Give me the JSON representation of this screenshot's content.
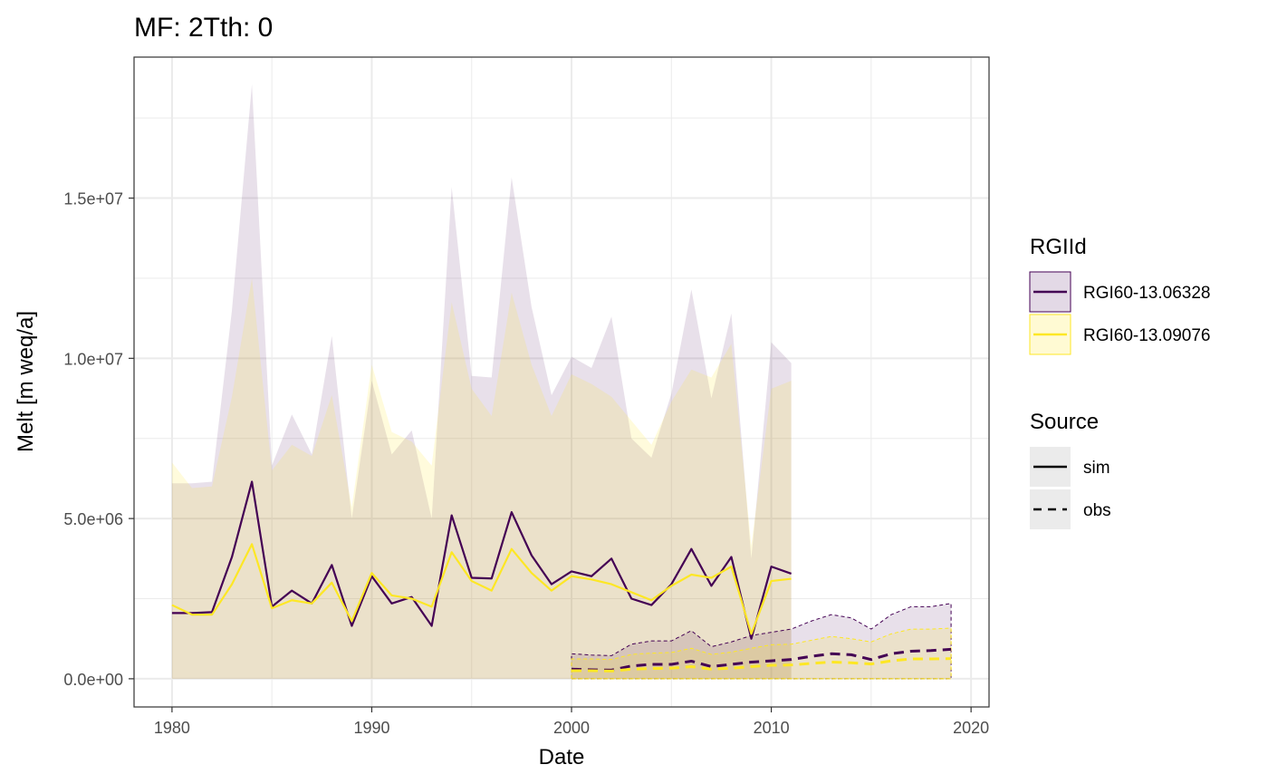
{
  "chart_data": {
    "type": "line",
    "title": "MF: 2Tth: 0",
    "xlabel": "Date",
    "ylabel": "Melt [m weq/a]",
    "xlim": [
      1978.1,
      2020.9
    ],
    "ylim": [
      -880000,
      19400000
    ],
    "x_ticks": [
      1980,
      1990,
      2000,
      2010,
      2020
    ],
    "x_tick_labels": [
      "1980",
      "1990",
      "2000",
      "2010",
      "2020"
    ],
    "y_ticks": [
      0,
      5000000,
      10000000,
      15000000
    ],
    "y_tick_labels": [
      "0.0e+00",
      "5.0e+06",
      "1.0e+07",
      "1.5e+07"
    ],
    "grid": true,
    "legend_position": "right",
    "legend": {
      "color_title": "RGIId",
      "color_entries": [
        {
          "label": "RGI60-13.06328",
          "color": "#440154"
        },
        {
          "label": "RGI60-13.09076",
          "color": "#FDE725"
        }
      ],
      "linetype_title": "Source",
      "linetype_entries": [
        {
          "label": "sim",
          "dash": "solid"
        },
        {
          "label": "obs",
          "dash": "dashed"
        }
      ]
    },
    "series": [
      {
        "glacier": "RGI60-13.06328",
        "source": "sim",
        "color": "#440154",
        "dash": "solid",
        "x": [
          1980,
          1981,
          1982,
          1983,
          1984,
          1985,
          1986,
          1987,
          1988,
          1989,
          1990,
          1991,
          1992,
          1993,
          1994,
          1995,
          1996,
          1997,
          1998,
          1999,
          2000,
          2001,
          2002,
          2003,
          2004,
          2005,
          2006,
          2007,
          2008,
          2009,
          2010,
          2011
        ],
        "y": [
          2050000,
          2050000,
          2080000,
          3800000,
          6150000,
          2250000,
          2750000,
          2350000,
          3550000,
          1650000,
          3200000,
          2350000,
          2550000,
          1650000,
          5100000,
          3150000,
          3130000,
          5200000,
          3850000,
          2950000,
          3350000,
          3200000,
          3750000,
          2500000,
          2300000,
          2950000,
          4050000,
          2900000,
          3800000,
          1250000,
          3500000,
          3280000
        ],
        "band_low": [
          6100000,
          6100000,
          6150000,
          11500000,
          18550000,
          6650000,
          8250000,
          7000000,
          10700000,
          5000000,
          9300000,
          7000000,
          7750000,
          5000000,
          15350000,
          9450000,
          9400000,
          15650000,
          11600000,
          8850000,
          10050000,
          9700000,
          11300000,
          7500000,
          6900000,
          8900000,
          12150000,
          8750000,
          11400000,
          3750000,
          10500000,
          9850000
        ],
        "band_high": [
          6100000,
          6100000,
          6150000,
          11500000,
          18550000,
          6650000,
          8250000,
          7000000,
          10700000,
          5000000,
          9300000,
          7000000,
          7750000,
          5000000,
          15350000,
          9450000,
          9400000,
          15650000,
          11600000,
          8850000,
          10050000,
          9700000,
          11300000,
          7500000,
          6900000,
          8900000,
          12150000,
          8750000,
          11400000,
          3750000,
          10500000,
          9850000
        ]
      },
      {
        "glacier": "RGI60-13.09076",
        "source": "sim",
        "color": "#FDE725",
        "dash": "solid",
        "x": [
          1980,
          1981,
          1982,
          1983,
          1984,
          1985,
          1986,
          1987,
          1988,
          1989,
          1990,
          1991,
          1992,
          1993,
          1994,
          1995,
          1996,
          1997,
          1998,
          1999,
          2000,
          2001,
          2002,
          2003,
          2004,
          2005,
          2006,
          2007,
          2008,
          2009,
          2010,
          2011
        ],
        "y": [
          2300000,
          2000000,
          2000000,
          2950000,
          4200000,
          2200000,
          2450000,
          2350000,
          3000000,
          1800000,
          3300000,
          2600000,
          2500000,
          2250000,
          3950000,
          3050000,
          2750000,
          4050000,
          3300000,
          2750000,
          3200000,
          3100000,
          2950000,
          2700000,
          2450000,
          2900000,
          3250000,
          3150000,
          3500000,
          1400000,
          3050000,
          3120000
        ],
        "band_high": [
          6750000,
          5950000,
          6000000,
          8800000,
          12500000,
          6500000,
          7300000,
          6950000,
          8850000,
          5350000,
          9800000,
          7700000,
          7400000,
          6650000,
          11750000,
          9050000,
          8200000,
          12050000,
          9800000,
          8200000,
          9500000,
          9200000,
          8800000,
          8050000,
          7300000,
          8650000,
          9650000,
          9400000,
          10450000,
          4150000,
          9050000,
          9300000
        ]
      },
      {
        "glacier": "RGI60-13.06328",
        "source": "obs",
        "color": "#440154",
        "dash": "dashed",
        "x": [
          2000,
          2001,
          2002,
          2003,
          2004,
          2005,
          2006,
          2007,
          2008,
          2009,
          2010,
          2011,
          2012,
          2013,
          2014,
          2015,
          2016,
          2017,
          2018,
          2019
        ],
        "y": [
          300000,
          280000,
          270000,
          400000,
          450000,
          450000,
          550000,
          380000,
          450000,
          520000,
          560000,
          600000,
          700000,
          780000,
          750000,
          600000,
          780000,
          860000,
          880000,
          920000
        ],
        "band_high": [
          780000,
          740000,
          720000,
          1080000,
          1180000,
          1180000,
          1500000,
          1000000,
          1150000,
          1350000,
          1450000,
          1550000,
          1800000,
          2000000,
          1900000,
          1550000,
          2000000,
          2250000,
          2250000,
          2350000
        ]
      },
      {
        "glacier": "RGI60-13.09076",
        "source": "obs",
        "color": "#FDE725",
        "dash": "dashed",
        "x": [
          2000,
          2001,
          2002,
          2003,
          2004,
          2005,
          2006,
          2007,
          2008,
          2009,
          2010,
          2011,
          2012,
          2013,
          2014,
          2015,
          2016,
          2017,
          2018,
          2019
        ],
        "y": [
          250000,
          250000,
          240000,
          300000,
          320000,
          330000,
          380000,
          300000,
          330000,
          380000,
          420000,
          430000,
          480000,
          520000,
          500000,
          460000,
          560000,
          620000,
          620000,
          630000
        ],
        "band_high": [
          620000,
          620000,
          600000,
          760000,
          800000,
          820000,
          950000,
          760000,
          830000,
          950000,
          1060000,
          1080000,
          1200000,
          1320000,
          1250000,
          1150000,
          1400000,
          1550000,
          1550000,
          1580000
        ]
      }
    ]
  }
}
